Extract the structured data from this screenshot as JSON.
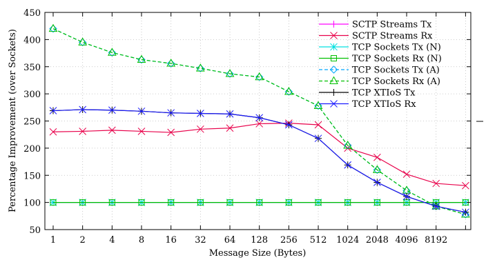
{
  "chart_data": {
    "type": "line",
    "xlabel": "Message Size (Bytes)",
    "ylabel": "Percentage Improvement (over Sockets)",
    "categories": [
      "1",
      "2",
      "4",
      "8",
      "16",
      "32",
      "64",
      "128",
      "256",
      "512",
      "1024",
      "2048",
      "4096",
      "8192",
      ""
    ],
    "ylim": [
      50,
      450
    ],
    "yticks": [
      50,
      100,
      150,
      200,
      250,
      300,
      350,
      400,
      450
    ],
    "grid": true,
    "legend_position": "top-right",
    "series": [
      {
        "name": "SCTP Streams Tx",
        "color": "#ff00ff",
        "marker": "plus",
        "dash": "solid",
        "values": [
          100,
          100,
          100,
          100,
          100,
          100,
          100,
          100,
          100,
          100,
          100,
          100,
          100,
          100,
          100
        ]
      },
      {
        "name": "SCTP Streams Rx",
        "color": "#e8004a",
        "marker": "x",
        "dash": "solid",
        "values": [
          230,
          231,
          233,
          231,
          229,
          235,
          237,
          245,
          246,
          243,
          200,
          183,
          152,
          135,
          131
        ]
      },
      {
        "name": "TCP Sockets Tx (N)",
        "color": "#00e0e0",
        "marker": "asterisk",
        "dash": "solid",
        "values": [
          100,
          100,
          100,
          100,
          100,
          100,
          100,
          100,
          100,
          100,
          100,
          100,
          100,
          100,
          100
        ]
      },
      {
        "name": "TCP Sockets Rx (N)",
        "color": "#00c000",
        "marker": "square",
        "dash": "solid",
        "values": [
          100,
          100,
          100,
          100,
          100,
          100,
          100,
          100,
          100,
          100,
          100,
          100,
          100,
          100,
          100
        ]
      },
      {
        "name": "TCP Sockets Tx (A)",
        "color": "#00a8ff",
        "marker": "diamond",
        "dash": "dashed",
        "values": [
          420,
          395,
          376,
          363,
          356,
          347,
          337,
          331,
          304,
          278,
          205,
          160,
          122,
          93,
          78
        ]
      },
      {
        "name": "TCP Sockets Rx (A)",
        "color": "#00c000",
        "marker": "triangle",
        "dash": "dashed",
        "values": [
          420,
          395,
          376,
          363,
          356,
          347,
          337,
          331,
          304,
          278,
          205,
          160,
          122,
          93,
          78
        ]
      },
      {
        "name": "TCP XTIoS Tx",
        "color": "#000000",
        "marker": "plus",
        "dash": "solid",
        "values": [
          269,
          271,
          270,
          268,
          265,
          264,
          263,
          256,
          243,
          218,
          169,
          137,
          111,
          93,
          82
        ]
      },
      {
        "name": "TCP XTIoS Rx",
        "color": "#1a1aff",
        "marker": "x",
        "dash": "solid",
        "values": [
          269,
          271,
          270,
          268,
          265,
          264,
          263,
          256,
          243,
          218,
          169,
          137,
          111,
          93,
          82
        ]
      }
    ]
  }
}
